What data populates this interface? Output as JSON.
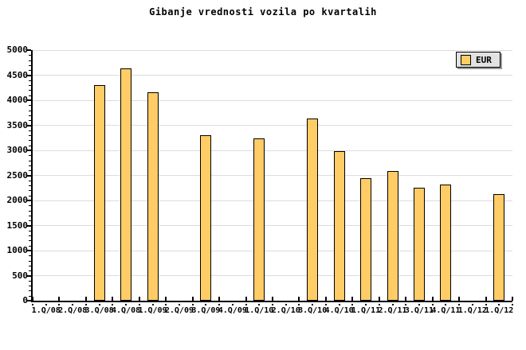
{
  "colors": {
    "bar_fill": "#FFCC66",
    "bar_border": "#000000",
    "grid": "#DCDCDC",
    "axis": "#000000",
    "legend_bg": "#E2E2E2",
    "legend_shadow": "#999999"
  },
  "legend": {
    "label": "EUR"
  },
  "chart_data": {
    "type": "bar",
    "title": "Gibanje vrednosti vozila po kvartalih",
    "categories": [
      "1.Q/08",
      "2.Q/08",
      "3.Q/08",
      "4.Q/08",
      "1.Q/09",
      "2.Q/09",
      "3.Q/09",
      "4.Q/09",
      "1.Q/10",
      "2.Q/10",
      "3.Q/10",
      "4.Q/10",
      "1.Q/11",
      "2.Q/11",
      "3.Q/11",
      "4.Q/11",
      "1.Q/12",
      "1.Q/12"
    ],
    "series": [
      {
        "name": "EUR",
        "values": [
          null,
          null,
          4300,
          4630,
          4160,
          null,
          3300,
          null,
          3240,
          null,
          3640,
          2980,
          2440,
          2590,
          2250,
          2320,
          null,
          2120
        ]
      }
    ],
    "xlabel": "",
    "ylabel": "",
    "ylim": [
      0,
      5000
    ],
    "ytick_step": 500,
    "ytick_minor_step": 100,
    "ytick_labels": [
      "0",
      "500",
      "1000",
      "1500",
      "2000",
      "2500",
      "3000",
      "3500",
      "4000",
      "4500",
      "5000"
    ],
    "grid": "horizontal-major-only",
    "legend_position": "top-right",
    "missing_bars_note": "null = no bar drawn for that quarter"
  }
}
